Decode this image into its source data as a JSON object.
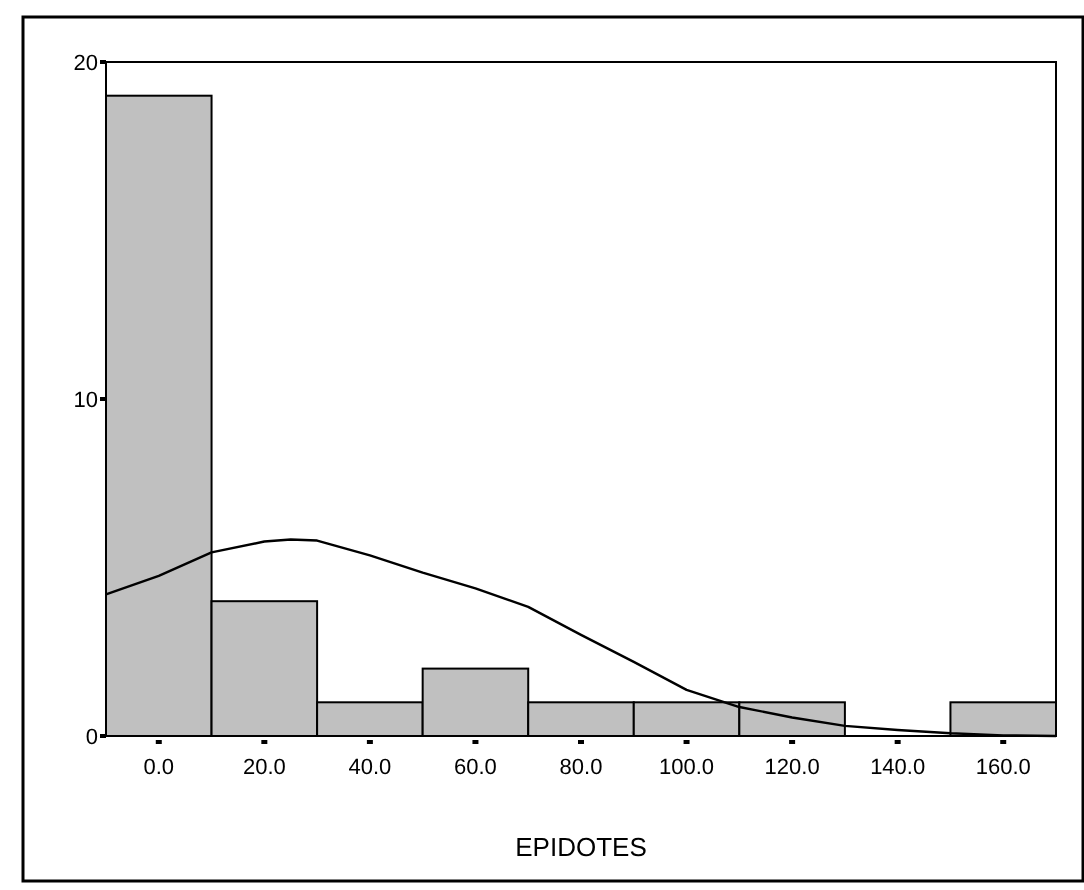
{
  "chart_data": {
    "type": "histogram",
    "xlabel": "EPIDOTES",
    "bins": [
      -10,
      10,
      30,
      50,
      70,
      90,
      110,
      130,
      150,
      170
    ],
    "values": [
      19,
      4,
      1,
      2,
      1,
      1,
      1,
      0,
      1
    ],
    "color": "#c0c0c0",
    "series": [
      {
        "type": "line",
        "color": "#000000",
        "x": [
          -10,
          0,
          10,
          20,
          25,
          30,
          40,
          50,
          60,
          70,
          80,
          90,
          100,
          110,
          120,
          130,
          140,
          150,
          160,
          170
        ],
        "values": [
          4.2,
          4.75,
          5.45,
          5.77,
          5.83,
          5.8,
          5.36,
          4.85,
          4.38,
          3.83,
          3.0,
          2.2,
          1.37,
          0.86,
          0.55,
          0.3,
          0.18,
          0.08,
          0.02,
          0
        ]
      }
    ],
    "xlim": [
      -10,
      170
    ],
    "ylim": [
      0,
      20
    ],
    "xticks": [
      {
        "value": 0,
        "label": "0.0"
      },
      {
        "value": 20,
        "label": "20.0"
      },
      {
        "value": 40,
        "label": "40.0"
      },
      {
        "value": 60,
        "label": "60.0"
      },
      {
        "value": 80,
        "label": "80.0"
      },
      {
        "value": 100,
        "label": "100.0"
      },
      {
        "value": 120,
        "label": "120.0"
      },
      {
        "value": 140,
        "label": "140.0"
      },
      {
        "value": 160,
        "label": "160.0"
      }
    ],
    "yticks": [
      0,
      10,
      20
    ]
  }
}
